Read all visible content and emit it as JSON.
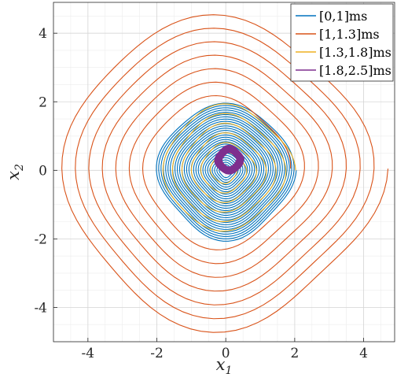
{
  "chart_data": {
    "type": "line",
    "title": "",
    "xlabel": "x",
    "xlabel_sub": "1",
    "ylabel": "x",
    "ylabel_sub": "2",
    "xlim": [
      -5,
      4.9
    ],
    "ylim": [
      -5,
      4.9
    ],
    "xticks": [
      -4,
      -2,
      0,
      2,
      4
    ],
    "yticks": [
      -4,
      -2,
      0,
      2,
      4
    ],
    "xtick_labels": [
      "-4",
      "-2",
      "0",
      "2",
      "4"
    ],
    "ytick_labels": [
      "-4",
      "-2",
      "0",
      "2",
      "4"
    ],
    "grid": true,
    "minor_grid": true,
    "legend_position": "top-right",
    "series": [
      {
        "name": "[0,1]ms",
        "color": "#0072BD",
        "spiral": {
          "start_radius": 0.15,
          "end_radius": 1.95,
          "turns": 28,
          "center": [
            0,
            0
          ]
        }
      },
      {
        "name": "[1,1.3]ms",
        "color": "#D95319",
        "spiral": {
          "start_radius": 1.95,
          "end_radius": 4.6,
          "turns": 7,
          "center": [
            -0.2,
            0.05
          ]
        }
      },
      {
        "name": "[1.3,1.8]ms",
        "color": "#EDB120",
        "spiral": {
          "start_radius": 1.9,
          "end_radius": 0.3,
          "turns": 6,
          "center": [
            0,
            0
          ]
        }
      },
      {
        "name": "[1.8,2.5]ms",
        "color": "#7E2F8E",
        "spiral": {
          "start_radius": 0.4,
          "end_radius": 0.2,
          "turns": 10,
          "center": [
            0.1,
            0.3
          ]
        }
      }
    ]
  }
}
